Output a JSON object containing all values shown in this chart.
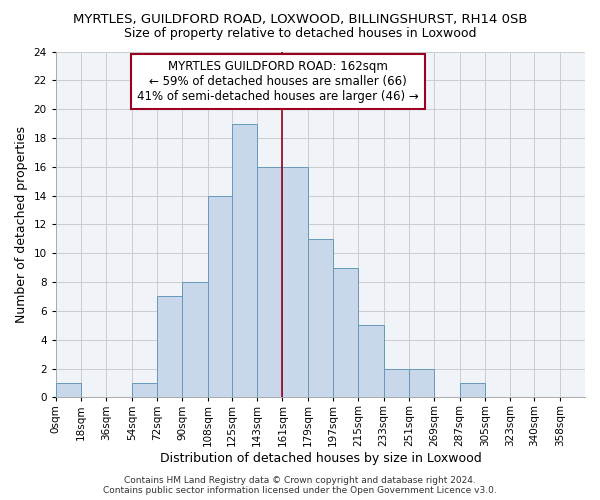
{
  "title": "MYRTLES, GUILDFORD ROAD, LOXWOOD, BILLINGSHURST, RH14 0SB",
  "subtitle": "Size of property relative to detached houses in Loxwood",
  "xlabel": "Distribution of detached houses by size in Loxwood",
  "ylabel": "Number of detached properties",
  "bar_left_edges": [
    0,
    18,
    36,
    54,
    72,
    90,
    108,
    125,
    143,
    161,
    179,
    197,
    215,
    233,
    251,
    269,
    287,
    305,
    323,
    340,
    358
  ],
  "bar_labels": [
    "0sqm",
    "18sqm",
    "36sqm",
    "54sqm",
    "72sqm",
    "90sqm",
    "108sqm",
    "125sqm",
    "143sqm",
    "161sqm",
    "179sqm",
    "197sqm",
    "215sqm",
    "233sqm",
    "251sqm",
    "269sqm",
    "287sqm",
    "305sqm",
    "323sqm",
    "340sqm",
    "358sqm"
  ],
  "bar_heights": [
    1,
    0,
    0,
    1,
    7,
    8,
    14,
    19,
    16,
    16,
    11,
    9,
    5,
    2,
    2,
    0,
    1,
    0,
    0,
    0,
    0
  ],
  "bar_color": "#c8d8ea",
  "bar_edgecolor": "#6699bb",
  "bar_linewidth": 0.7,
  "vline_x": 161,
  "vline_color": "#990022",
  "vline_linewidth": 1.2,
  "annotation_text": "MYRTLES GUILDFORD ROAD: 162sqm\n← 59% of detached houses are smaller (66)\n41% of semi-detached houses are larger (46) →",
  "annotation_box_edgecolor": "#990022",
  "annotation_bg": "#ffffff",
  "annotation_linewidth": 1.5,
  "ylim": [
    0,
    24
  ],
  "yticks": [
    0,
    2,
    4,
    6,
    8,
    10,
    12,
    14,
    16,
    18,
    20,
    22,
    24
  ],
  "grid_color": "#cccccc",
  "bg_color": "#ffffff",
  "plot_bg_color": "#f0f4f8",
  "footer_text": "Contains HM Land Registry data © Crown copyright and database right 2024.\nContains public sector information licensed under the Open Government Licence v3.0.",
  "title_fontsize": 9.5,
  "subtitle_fontsize": 9,
  "axis_label_fontsize": 9,
  "tick_fontsize": 7.5,
  "annotation_fontsize": 8.5,
  "footer_fontsize": 6.5
}
